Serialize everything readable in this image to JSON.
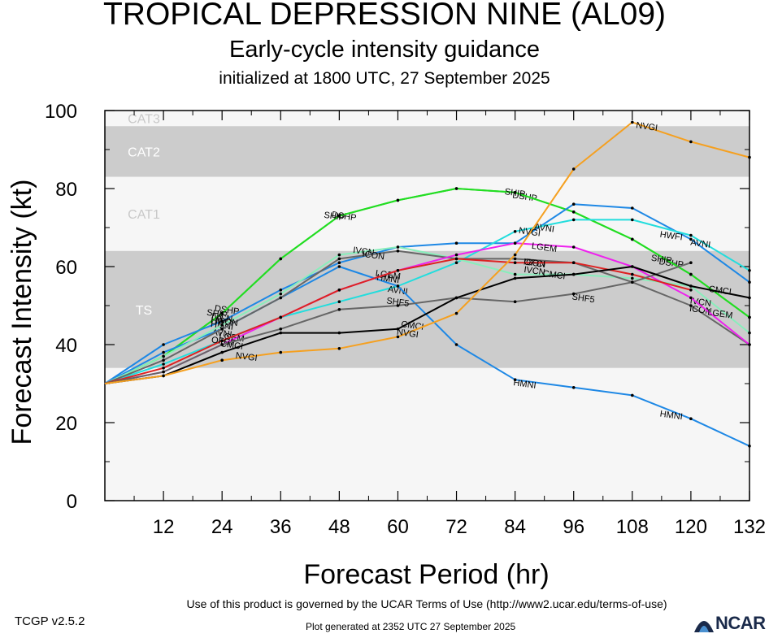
{
  "title": "TROPICAL DEPRESSION NINE (AL09)",
  "subtitle": "Early-cycle intensity guidance",
  "init_line": "initialized at 1800 UTC, 27 September 2025",
  "footer": {
    "terms": "Use of this product is governed by the UCAR Terms of Use (http://www2.ucar.edu/terms-of-use)",
    "version": "TCGP v2.5.2",
    "generated": "Plot generated at 2352 UTC   27 September 2025",
    "logo": "NCAR",
    "logo_icon": "ncar-logo-icon"
  },
  "chart_data": {
    "type": "line",
    "xlabel": "Forecast Period (hr)",
    "ylabel": "Forecast Intensity (kt)",
    "xlim": [
      0,
      132
    ],
    "ylim": [
      0,
      100
    ],
    "xticks": [
      12,
      24,
      36,
      48,
      60,
      72,
      84,
      96,
      108,
      120,
      132
    ],
    "yticks": [
      0,
      20,
      40,
      60,
      80,
      100
    ],
    "bands": [
      {
        "name": "CAT3",
        "ymin": 96,
        "ymax": 107,
        "color": "#f6f6f6"
      },
      {
        "name": "CAT2",
        "ymin": 83,
        "ymax": 96,
        "color": "#cccccc"
      },
      {
        "name": "CAT1",
        "ymin": 64,
        "ymax": 83,
        "color": "#f6f6f6"
      },
      {
        "name": "TS",
        "ymin": 34,
        "ymax": 64,
        "color": "#cccccc"
      },
      {
        "name": "",
        "ymin": 0,
        "ymax": 34,
        "color": "#f6f6f6"
      }
    ],
    "series": [
      {
        "name": "DSHP",
        "color": "#22dd22",
        "x": [
          0,
          12,
          24,
          36,
          48,
          60,
          72,
          84,
          96,
          108,
          120,
          132
        ],
        "y": [
          30,
          37,
          48,
          62,
          73,
          77,
          80,
          79,
          74,
          67,
          58,
          47
        ],
        "labels": [
          {
            "text": "DSHP",
            "x": 25,
            "y": 49
          },
          {
            "text": "DSHP",
            "x": 49,
            "y": 73
          },
          {
            "text": "DSHP",
            "x": 86,
            "y": 78
          },
          {
            "text": "DSHP",
            "x": 116,
            "y": 61
          }
        ]
      },
      {
        "name": "SHIP",
        "color": "#22dd22",
        "x": [
          0,
          12,
          24,
          36,
          48,
          60,
          72,
          84,
          96,
          108,
          120,
          132
        ],
        "y": [
          30,
          37,
          48,
          62,
          73,
          77,
          80,
          79,
          74,
          67,
          58,
          47
        ],
        "labels": [
          {
            "text": "SHIP",
            "x": 23,
            "y": 48
          },
          {
            "text": "SHIP",
            "x": 47,
            "y": 73
          },
          {
            "text": "SHIP",
            "x": 84,
            "y": 79
          },
          {
            "text": "SHIP",
            "x": 114,
            "y": 62
          }
        ]
      },
      {
        "name": "HWFI",
        "color": "#1e88e5",
        "x": [
          0,
          12,
          24,
          36,
          48,
          60,
          72,
          84,
          96,
          108,
          120,
          132
        ],
        "y": [
          30,
          40,
          46,
          54,
          61,
          65,
          66,
          66,
          76,
          75,
          67,
          56
        ],
        "labels": [
          {
            "text": "HWFI",
            "x": 24,
            "y": 46
          },
          {
            "text": "HWFI",
            "x": 116,
            "y": 68
          }
        ]
      },
      {
        "name": "AVNI",
        "color": "#22dddd",
        "x": [
          0,
          12,
          24,
          36,
          48,
          60,
          72,
          84,
          96,
          108,
          120,
          132
        ],
        "y": [
          30,
          35,
          41,
          47,
          51,
          55,
          61,
          69,
          72,
          72,
          68,
          59
        ],
        "labels": [
          {
            "text": "AVNI",
            "x": 24,
            "y": 43
          },
          {
            "text": "AVNI",
            "x": 60,
            "y": 54
          },
          {
            "text": "AVNI",
            "x": 90,
            "y": 70
          },
          {
            "text": "AVNI",
            "x": 122,
            "y": 66
          }
        ]
      },
      {
        "name": "HMNI",
        "color": "#1e88e5",
        "x": [
          0,
          12,
          24,
          36,
          48,
          60,
          72,
          84,
          96,
          108,
          120,
          132
        ],
        "y": [
          30,
          38,
          44,
          52,
          60,
          55,
          40,
          31,
          29,
          27,
          21,
          14
        ],
        "labels": [
          {
            "text": "HMNI",
            "x": 24,
            "y": 45
          },
          {
            "text": "HMNI",
            "x": 58,
            "y": 57
          },
          {
            "text": "HMNI",
            "x": 86,
            "y": 30
          },
          {
            "text": "HMNI",
            "x": 116,
            "y": 22
          }
        ]
      },
      {
        "name": "IVCN",
        "color": "#88eebb",
        "x": [
          0,
          12,
          24,
          36,
          48,
          60,
          72,
          84,
          96,
          108,
          120,
          132
        ],
        "y": [
          30,
          37,
          45,
          53,
          63,
          65,
          62,
          58,
          58,
          57,
          55,
          43
        ],
        "labels": [
          {
            "text": "IVCN",
            "x": 24,
            "y": 47
          },
          {
            "text": "IVCN",
            "x": 53,
            "y": 64
          },
          {
            "text": "IVCN",
            "x": 88,
            "y": 59
          },
          {
            "text": "IVCN",
            "x": 122,
            "y": 51
          }
        ]
      },
      {
        "name": "ICON",
        "color": "#666666",
        "x": [
          0,
          12,
          24,
          36,
          48,
          60,
          72,
          84,
          96,
          108,
          120,
          132
        ],
        "y": [
          30,
          36,
          44,
          52,
          62,
          64,
          62,
          62,
          61,
          56,
          50,
          40
        ],
        "labels": [
          {
            "text": "ICON",
            "x": 25,
            "y": 46
          },
          {
            "text": "ICON",
            "x": 55,
            "y": 63
          },
          {
            "text": "ICON",
            "x": 88,
            "y": 61
          },
          {
            "text": "ICON",
            "x": 122,
            "y": 49
          }
        ]
      },
      {
        "name": "LGEM",
        "color": "#ee22ee",
        "x": [
          0,
          12,
          24,
          36,
          48,
          60,
          72,
          84,
          96,
          108,
          120,
          132
        ],
        "y": [
          30,
          33,
          40,
          47,
          54,
          59,
          63,
          66,
          65,
          60,
          52,
          40
        ],
        "labels": [
          {
            "text": "LGEM",
            "x": 26,
            "y": 42
          },
          {
            "text": "LGEM",
            "x": 58,
            "y": 58
          },
          {
            "text": "LGEM",
            "x": 90,
            "y": 65
          },
          {
            "text": "LGEM",
            "x": 126,
            "y": 48
          }
        ]
      },
      {
        "name": "OFCI",
        "color": "#dd2222",
        "x": [
          0,
          12,
          24,
          36,
          48,
          60,
          72,
          84,
          96,
          108,
          120,
          132
        ],
        "y": [
          30,
          34,
          41,
          47,
          54,
          59,
          62,
          61,
          61,
          58,
          54,
          null
        ],
        "labels": [
          {
            "text": "OFCI",
            "x": 24,
            "y": 41
          },
          {
            "text": "OFCI",
            "x": 88,
            "y": 61
          }
        ]
      },
      {
        "name": "SHF5",
        "color": "#666666",
        "x": [
          0,
          12,
          24,
          36,
          48,
          60,
          72,
          84,
          96,
          108,
          120,
          132
        ],
        "y": [
          30,
          33,
          40,
          44,
          49,
          50,
          52,
          51,
          53,
          56,
          61,
          null
        ],
        "labels": [
          {
            "text": "SHF5",
            "x": 60,
            "y": 51
          },
          {
            "text": "SHF5",
            "x": 98,
            "y": 52
          }
        ]
      },
      {
        "name": "CMCI",
        "color": "#000000",
        "x": [
          0,
          12,
          24,
          36,
          48,
          60,
          72,
          84,
          96,
          108,
          120,
          132
        ],
        "y": [
          30,
          32,
          38,
          43,
          43,
          44,
          52,
          57,
          58,
          60,
          55,
          52
        ],
        "labels": [
          {
            "text": "CMCI",
            "x": 26,
            "y": 40
          },
          {
            "text": "CMCI",
            "x": 63,
            "y": 45
          },
          {
            "text": "CMCI",
            "x": 92,
            "y": 58
          },
          {
            "text": "CMCI",
            "x": 126,
            "y": 54
          }
        ]
      },
      {
        "name": "NVGI",
        "color": "#f5a020",
        "x": [
          0,
          12,
          24,
          36,
          48,
          60,
          72,
          84,
          96,
          108,
          120,
          132
        ],
        "y": [
          30,
          32,
          36,
          38,
          39,
          42,
          48,
          63,
          85,
          97,
          92,
          88
        ],
        "labels": [
          {
            "text": "NVGI",
            "x": 29,
            "y": 37
          },
          {
            "text": "NVGI",
            "x": 62,
            "y": 43
          },
          {
            "text": "NVGI",
            "x": 87,
            "y": 69
          },
          {
            "text": "NVGI",
            "x": 111,
            "y": 96
          }
        ]
      }
    ]
  }
}
